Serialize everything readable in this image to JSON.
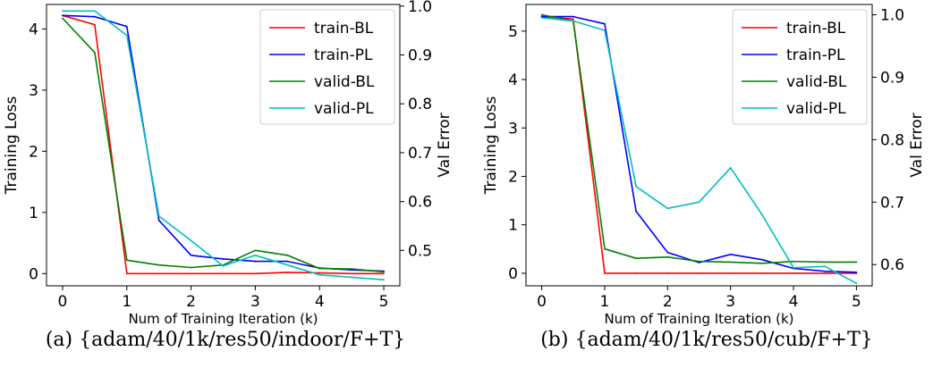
{
  "chart_data": [
    {
      "type": "line",
      "caption": "(a) {adam/40/1k/res50/indoor/F+T}",
      "xlabel": "Num of Training Iteration (k)",
      "ylabel_left": "Training Loss",
      "ylabel_right": "Val Error",
      "x": [
        0,
        0.5,
        1,
        1.5,
        2,
        2.5,
        3,
        3.5,
        4,
        4.5,
        5
      ],
      "xlim": [
        -0.25,
        5.25
      ],
      "xticks": [
        0,
        1,
        2,
        3,
        4,
        5
      ],
      "ylim_left": [
        -0.2,
        4.4
      ],
      "yticks_left": [
        0,
        1,
        2,
        3,
        4
      ],
      "ylim_right": [
        0.4275,
        1.0033
      ],
      "yticks_right": [
        0.5,
        0.6,
        0.7,
        0.8,
        0.9,
        1.0
      ],
      "ytick_labels_right": [
        "0.5",
        "0.6",
        "0.7",
        "0.8",
        "0.9",
        "1.0"
      ],
      "legend_position": "top-right",
      "series": [
        {
          "name": "train-BL",
          "color": "#ff0000",
          "axis": "left",
          "values": [
            4.22,
            4.07,
            0.0,
            0.0,
            0.0,
            0.0,
            0.0,
            0.02,
            0.01,
            0.0,
            0.0
          ]
        },
        {
          "name": "train-PL",
          "color": "#0000ff",
          "axis": "left",
          "values": [
            4.22,
            4.2,
            4.04,
            0.87,
            0.3,
            0.24,
            0.2,
            0.2,
            0.09,
            0.06,
            0.04
          ]
        },
        {
          "name": "valid-BL",
          "color": "#008000",
          "axis": "right",
          "values": [
            0.975,
            0.905,
            0.48,
            0.47,
            0.465,
            0.47,
            0.5,
            0.49,
            0.463,
            0.462,
            0.456
          ]
        },
        {
          "name": "valid-PL",
          "color": "#00bfbf",
          "axis": "right",
          "values": [
            0.99,
            0.99,
            0.94,
            0.57,
            0.52,
            0.468,
            0.49,
            0.47,
            0.45,
            0.445,
            0.44
          ]
        }
      ]
    },
    {
      "type": "line",
      "caption": "(b) {adam/40/1k/res50/cub/F+T}",
      "xlabel": "Num of Training Iteration (k)",
      "ylabel_left": "Training Loss",
      "ylabel_right": "Val Error",
      "x": [
        0,
        0.5,
        1,
        1.5,
        2,
        2.5,
        3,
        3.5,
        4,
        4.5,
        5
      ],
      "xlim": [
        -0.25,
        5.25
      ],
      "xticks": [
        0,
        1,
        2,
        3,
        4,
        5
      ],
      "ylim_left": [
        -0.26,
        5.55
      ],
      "yticks_left": [
        0,
        1,
        2,
        3,
        4,
        5
      ],
      "ylim_right": [
        0.566,
        1.0165
      ],
      "yticks_right": [
        0.6,
        0.7,
        0.8,
        0.9,
        1.0
      ],
      "ytick_labels_right": [
        "0.6",
        "0.7",
        "0.8",
        "0.9",
        "1.0"
      ],
      "legend_position": "top-right",
      "series": [
        {
          "name": "train-BL",
          "color": "#ff0000",
          "axis": "left",
          "values": [
            5.3,
            5.25,
            0.0,
            0.0,
            0.0,
            0.0,
            0.0,
            0.0,
            0.0,
            0.0,
            0.0
          ]
        },
        {
          "name": "train-PL",
          "color": "#0000ff",
          "axis": "left",
          "values": [
            5.3,
            5.3,
            5.15,
            1.28,
            0.43,
            0.22,
            0.39,
            0.28,
            0.1,
            0.04,
            0.02
          ]
        },
        {
          "name": "valid-BL",
          "color": "#008000",
          "axis": "right",
          "values": [
            1.0,
            0.99,
            0.625,
            0.61,
            0.612,
            0.605,
            0.604,
            0.602,
            0.605,
            0.604,
            0.604
          ]
        },
        {
          "name": "valid-PL",
          "color": "#00bfbf",
          "axis": "right",
          "values": [
            0.995,
            0.99,
            0.975,
            0.725,
            0.69,
            0.7,
            0.755,
            0.68,
            0.595,
            0.597,
            0.57
          ]
        }
      ]
    }
  ]
}
